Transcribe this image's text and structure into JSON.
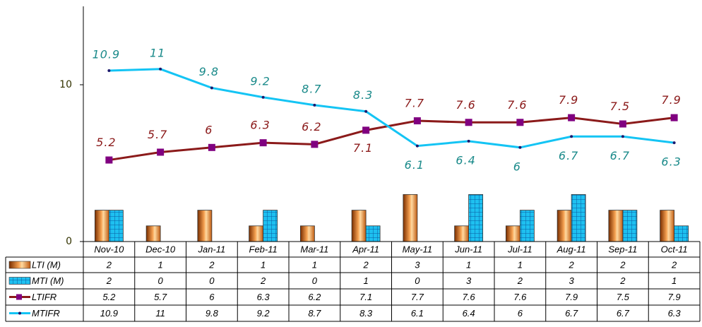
{
  "chart_data": {
    "type": "combo",
    "categories": [
      "Nov-10",
      "Dec-10",
      "Jan-11",
      "Feb-11",
      "Mar-11",
      "Apr-11",
      "May-11",
      "Jun-11",
      "Jul-11",
      "Aug-11",
      "Sep-11",
      "Oct-11"
    ],
    "series": [
      {
        "name": "LTI (M)",
        "kind": "bar",
        "color": "#e8862a",
        "values": [
          2,
          1,
          2,
          1,
          1,
          2,
          3,
          1,
          1,
          2,
          2,
          2
        ]
      },
      {
        "name": "MTI (M)",
        "kind": "bar",
        "color": "#1ec0f0",
        "values": [
          2,
          0,
          0,
          2,
          0,
          1,
          0,
          3,
          2,
          3,
          2,
          1
        ]
      },
      {
        "name": "LTIFR",
        "kind": "line",
        "color": "#8b1a1a",
        "marker_color": "#800080",
        "label_color": "#8b1a1a",
        "values": [
          5.2,
          5.7,
          6,
          6.3,
          6.2,
          7.1,
          7.7,
          7.6,
          7.6,
          7.9,
          7.5,
          7.9
        ]
      },
      {
        "name": "MTIFR",
        "kind": "line",
        "color": "#14c4f4",
        "marker_color": "#1a1a6e",
        "label_color": "#1a8a8a",
        "values": [
          10.9,
          11,
          9.8,
          9.2,
          8.7,
          8.3,
          6.1,
          6.4,
          6,
          6.7,
          6.7,
          6.3
        ]
      }
    ],
    "ylim": [
      0,
      15
    ],
    "yticks": [
      0,
      10
    ],
    "data_table": true
  }
}
